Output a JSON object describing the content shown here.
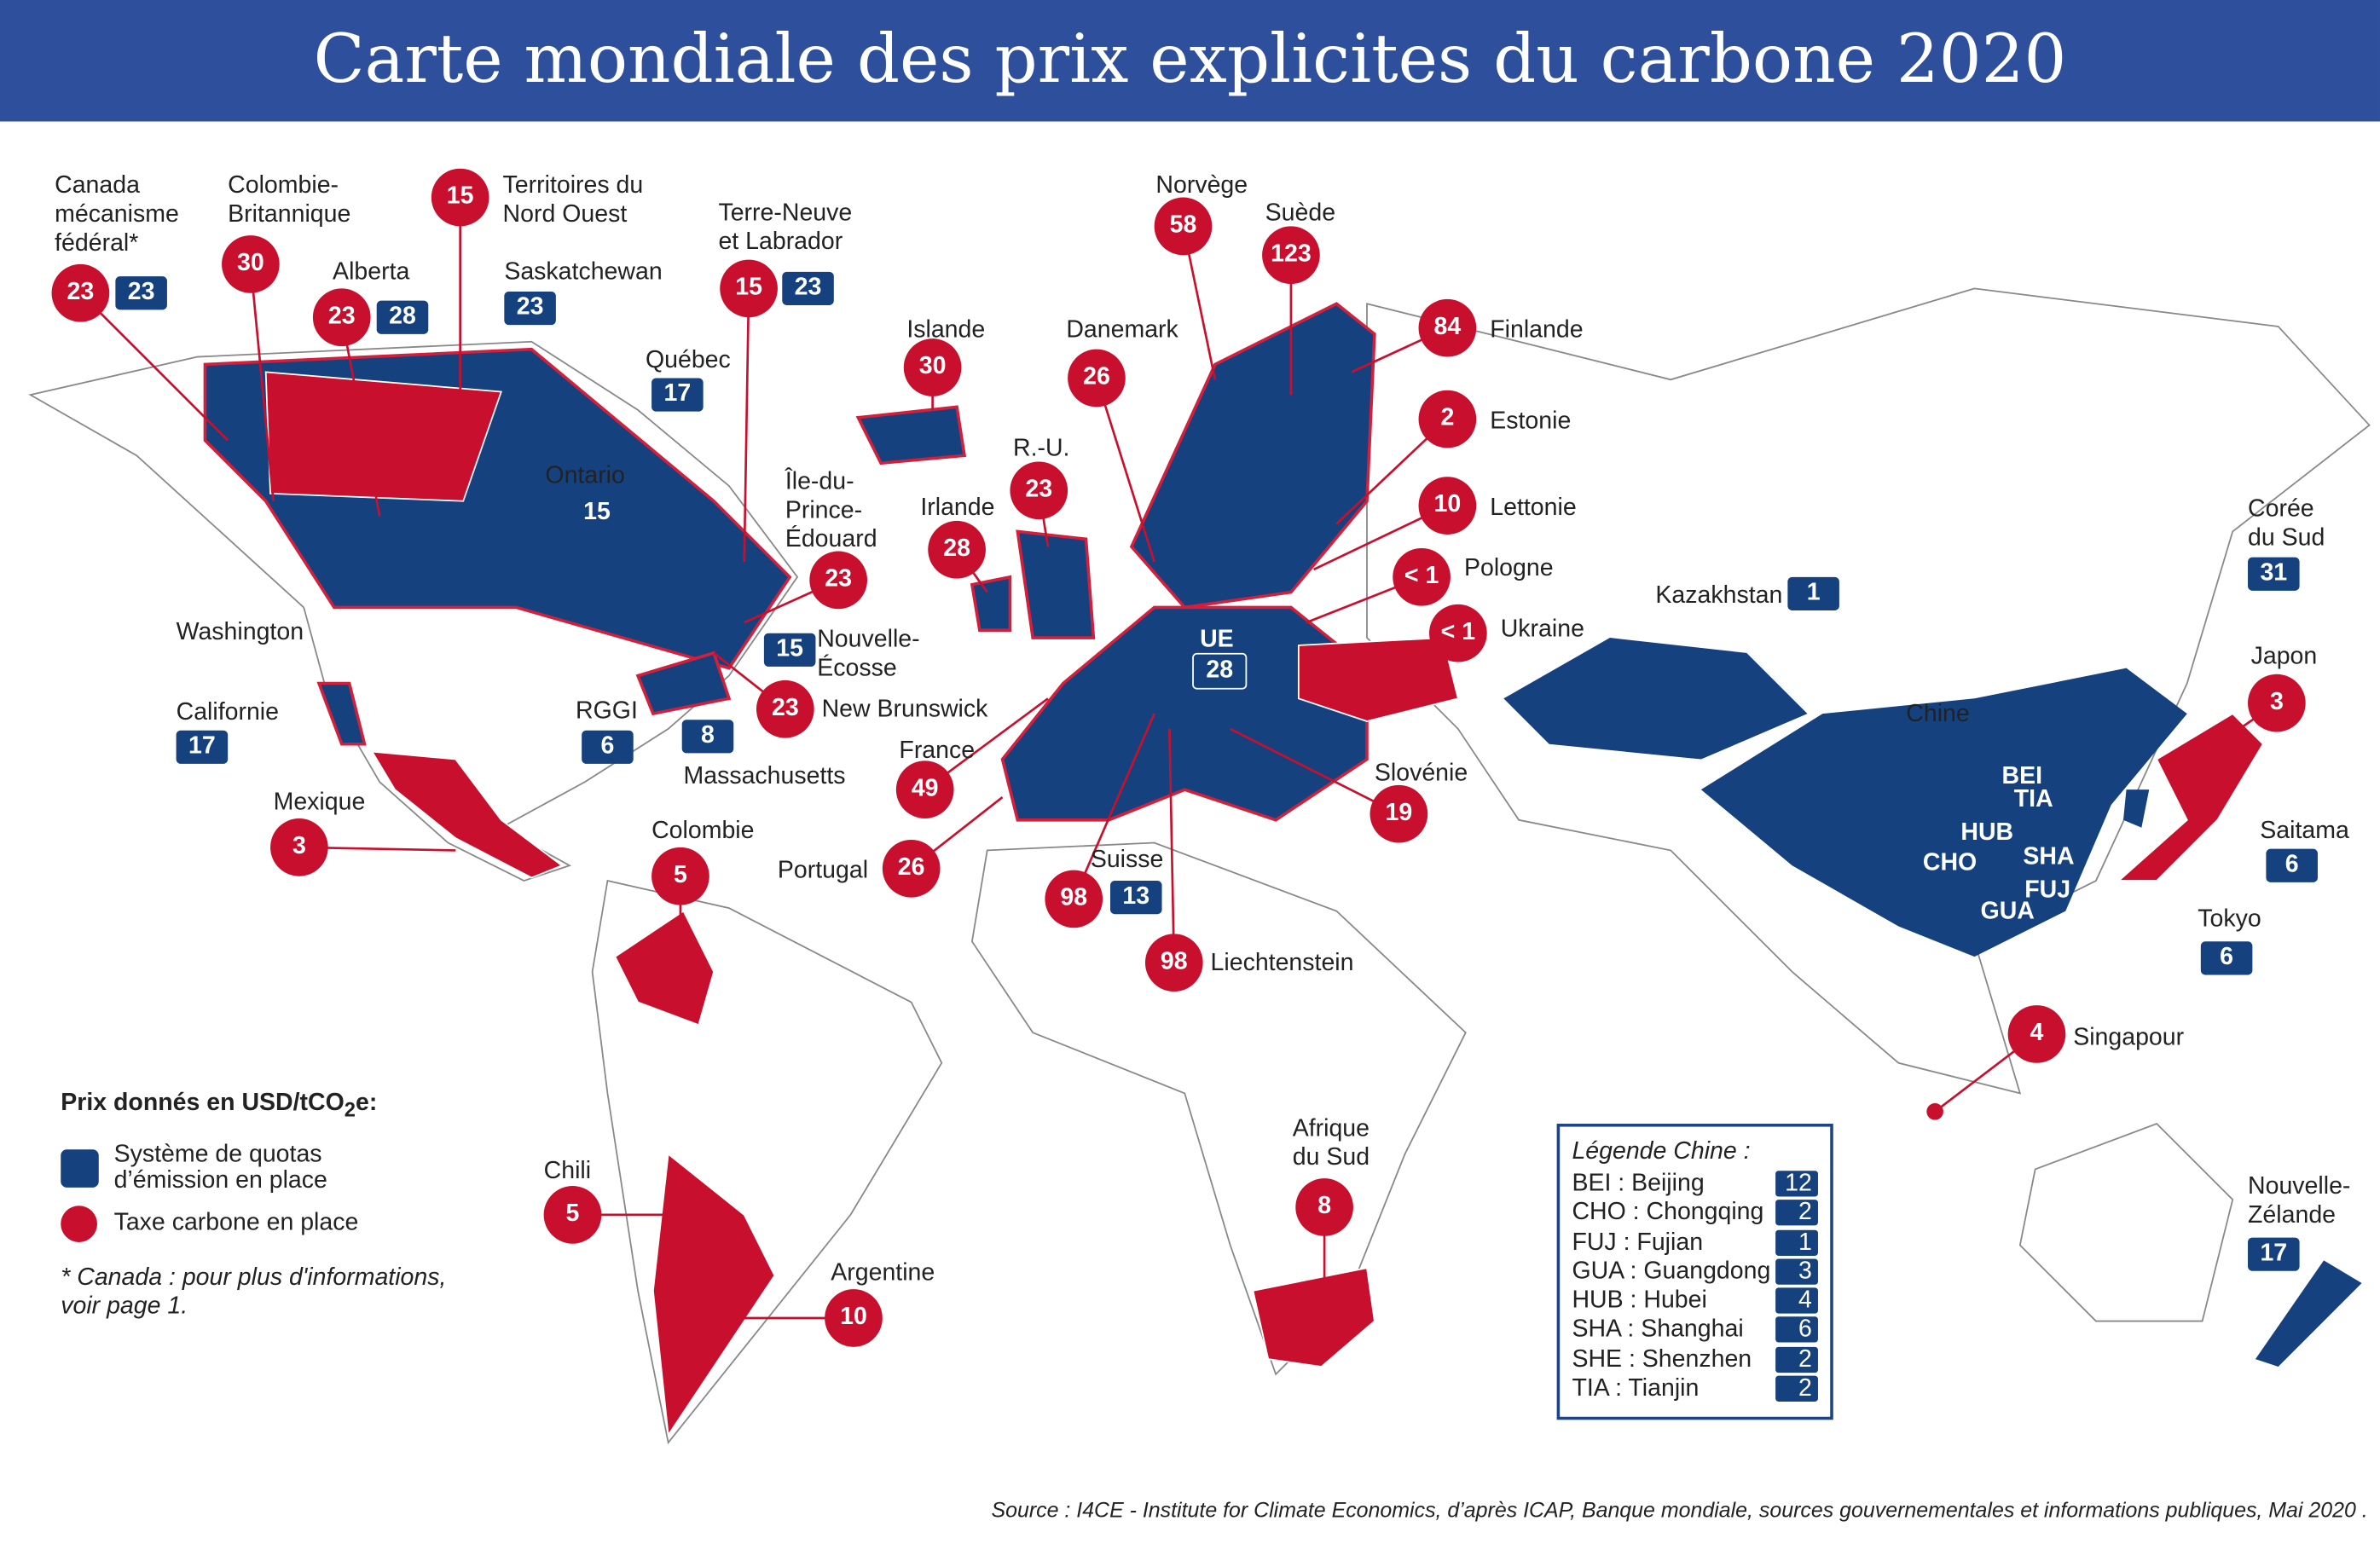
{
  "title": "Carte mondiale des prix explicites du carbone 2020",
  "colors": {
    "ets": "#15427f",
    "tax": "#c8102e",
    "title_bar": "#2d4f9c"
  },
  "markers": [
    {
      "label": "Canada\nmécanisme\nfédéral*",
      "tax": "23",
      "ets": "23"
    },
    {
      "label": "Colombie-\nBritannique",
      "tax": "30"
    },
    {
      "label": "Alberta",
      "tax": "23",
      "ets": "28"
    },
    {
      "label": "Territoires du\nNord Ouest",
      "tax": "15"
    },
    {
      "label": "Saskatchewan",
      "ets": "23"
    },
    {
      "label": "Terre-Neuve\net Labrador",
      "tax": "15",
      "ets": "23"
    },
    {
      "label": "Québec",
      "ets": "17"
    },
    {
      "label": "Ontario",
      "ets": "15"
    },
    {
      "label": "Île-du-\nPrince-\nÉdouard",
      "tax": "23"
    },
    {
      "label": "Nouvelle-\nÉcosse",
      "ets": "15"
    },
    {
      "label": "New Brunswick",
      "tax": "23"
    },
    {
      "label": "Washington"
    },
    {
      "label": "Californie",
      "ets": "17"
    },
    {
      "label": "RGGI",
      "ets": "6"
    },
    {
      "label": "Massachusetts",
      "ets": "8"
    },
    {
      "label": "Mexique",
      "tax": "3"
    },
    {
      "label": "Colombie",
      "tax": "5"
    },
    {
      "label": "Chili",
      "tax": "5"
    },
    {
      "label": "Argentine",
      "tax": "10"
    },
    {
      "label": "Islande",
      "tax": "30"
    },
    {
      "label": "Irlande",
      "tax": "28"
    },
    {
      "label": "R.-U.",
      "tax": "23"
    },
    {
      "label": "Danemark",
      "tax": "26"
    },
    {
      "label": "Norvège",
      "tax": "58"
    },
    {
      "label": "Suède",
      "tax": "123"
    },
    {
      "label": "Finlande",
      "tax": "84"
    },
    {
      "label": "Estonie",
      "tax": "2"
    },
    {
      "label": "Lettonie",
      "tax": "10"
    },
    {
      "label": "Pologne",
      "tax": "< 1"
    },
    {
      "label": "Ukraine",
      "tax": "< 1"
    },
    {
      "label": "UE",
      "ets": "28"
    },
    {
      "label": "France",
      "tax": "49"
    },
    {
      "label": "Portugal",
      "tax": "26"
    },
    {
      "label": "Suisse",
      "tax": "98",
      "ets": "13"
    },
    {
      "label": "Liechtenstein",
      "tax": "98"
    },
    {
      "label": "Slovénie",
      "tax": "19"
    },
    {
      "label": "Afrique\ndu Sud",
      "tax": "8"
    },
    {
      "label": "Kazakhstan",
      "ets": "1"
    },
    {
      "label": "Chine"
    },
    {
      "label": "Corée\ndu Sud",
      "ets": "31"
    },
    {
      "label": "Japon",
      "tax": "3"
    },
    {
      "label": "Saitama",
      "ets": "6"
    },
    {
      "label": "Tokyo",
      "ets": "6"
    },
    {
      "label": "Singapour",
      "tax": "4"
    },
    {
      "label": "Nouvelle-\nZélande",
      "ets": "17"
    }
  ],
  "china_codes": [
    "BEI",
    "TIA",
    "HUB",
    "CHO",
    "SHA",
    "FUJ",
    "GUA",
    "SHE"
  ],
  "legend": {
    "title": "Prix donnés en USD/tCO",
    "title_sub": "2",
    "title_end": "e:",
    "ets_label": "Système de quotas\nd’émission en place",
    "tax_label": "Taxe carbone en place",
    "note": "* Canada : pour plus d'informations,\n   voir page 1."
  },
  "china_legend": {
    "title": "Légende Chine :",
    "rows": [
      {
        "name": "BEI : Beijing",
        "value": "12"
      },
      {
        "name": "CHO : Chongqing",
        "value": "2"
      },
      {
        "name": "FUJ : Fujian",
        "value": "1"
      },
      {
        "name": "GUA : Guangdong",
        "value": "3"
      },
      {
        "name": "HUB : Hubei",
        "value": "4"
      },
      {
        "name": "SHA : Shanghai",
        "value": "6"
      },
      {
        "name": "SHE : Shenzhen",
        "value": "2"
      },
      {
        "name": "TIA : Tianjin",
        "value": "2"
      }
    ]
  },
  "source": "Source : I4CE - Institute for Climate Economics, d’après ICAP, Banque mondiale, sources gouvernementales et informations publiques, Mai 2020 ."
}
